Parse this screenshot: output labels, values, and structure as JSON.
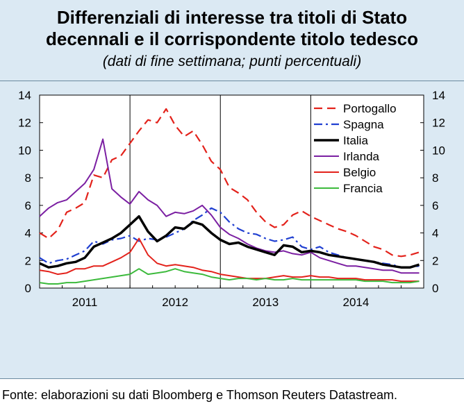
{
  "title_line1": "Differenziali di interesse tra titoli di Stato",
  "title_line2": "decennali e il corrispondente titolo tedesco",
  "subtitle": "(dati di fine settimana; punti percentuali)",
  "source": "Fonte: elaborazioni su dati Bloomberg e Thomson Reuters Datastream.",
  "colors": {
    "panel_bg": "#dbe9f3",
    "Portogallo": "#e3221b",
    "Spagna": "#1f3fd1",
    "Italia": "#000000",
    "Irlanda": "#7b1fa2",
    "Belgio": "#e3221b",
    "Francia": "#3cba3c"
  },
  "chart_data": {
    "type": "line",
    "title": "Differenziali di interesse tra titoli di Stato decennali e il corrispondente titolo tedesco",
    "xlabel": "",
    "ylabel": "",
    "ylim": [
      0,
      14
    ],
    "yticks": [
      0,
      2,
      4,
      6,
      8,
      10,
      12,
      14
    ],
    "xlim": [
      2010.5,
      2014.75
    ],
    "xtick_labels": [
      "2011",
      "2012",
      "2013",
      "2014"
    ],
    "x": [
      2010.5,
      2010.6,
      2010.7,
      2010.8,
      2010.9,
      2011.0,
      2011.1,
      2011.2,
      2011.3,
      2011.4,
      2011.5,
      2011.6,
      2011.7,
      2011.8,
      2011.9,
      2012.0,
      2012.1,
      2012.2,
      2012.3,
      2012.4,
      2012.5,
      2012.6,
      2012.7,
      2012.8,
      2012.9,
      2013.0,
      2013.1,
      2013.2,
      2013.3,
      2013.4,
      2013.5,
      2013.6,
      2013.7,
      2013.8,
      2013.9,
      2014.0,
      2014.1,
      2014.2,
      2014.3,
      2014.4,
      2014.5,
      2014.6,
      2014.7
    ],
    "series": [
      {
        "name": "Portogallo",
        "style": "dashed",
        "values": [
          4.0,
          3.6,
          4.2,
          5.5,
          5.8,
          6.2,
          8.2,
          8.0,
          9.3,
          9.6,
          10.5,
          11.4,
          12.2,
          12.0,
          13.0,
          11.8,
          11.0,
          11.4,
          10.4,
          9.2,
          8.6,
          7.3,
          6.9,
          6.4,
          5.5,
          4.8,
          4.4,
          4.6,
          5.3,
          5.6,
          5.2,
          4.9,
          4.6,
          4.3,
          4.1,
          3.8,
          3.4,
          3.0,
          2.8,
          2.4,
          2.3,
          2.4,
          2.6
        ]
      },
      {
        "name": "Spagna",
        "style": "dashdot",
        "values": [
          2.2,
          1.8,
          2.0,
          2.1,
          2.4,
          2.7,
          3.4,
          3.2,
          3.5,
          3.6,
          3.8,
          3.4,
          3.6,
          3.5,
          3.7,
          4.0,
          4.3,
          4.9,
          5.3,
          5.8,
          5.5,
          4.8,
          4.3,
          4.0,
          3.9,
          3.6,
          3.4,
          3.5,
          3.7,
          3.0,
          2.8,
          3.0,
          2.6,
          2.4,
          2.2,
          2.1,
          2.0,
          1.9,
          1.8,
          1.7,
          1.5,
          1.5,
          1.6
        ]
      },
      {
        "name": "Italia",
        "style": "solid-bold",
        "values": [
          1.8,
          1.5,
          1.6,
          1.8,
          1.9,
          2.2,
          3.0,
          3.3,
          3.6,
          4.0,
          4.6,
          5.2,
          4.1,
          3.4,
          3.8,
          4.4,
          4.3,
          4.8,
          4.6,
          4.0,
          3.5,
          3.2,
          3.3,
          3.0,
          2.8,
          2.6,
          2.4,
          3.1,
          3.0,
          2.6,
          2.7,
          2.6,
          2.4,
          2.3,
          2.2,
          2.1,
          2.0,
          1.9,
          1.7,
          1.6,
          1.5,
          1.5,
          1.7
        ]
      },
      {
        "name": "Irlanda",
        "style": "solid",
        "values": [
          5.2,
          5.8,
          6.2,
          6.4,
          7.0,
          7.6,
          8.6,
          10.8,
          7.2,
          6.6,
          6.1,
          7.0,
          6.4,
          6.0,
          5.2,
          5.5,
          5.4,
          5.6,
          6.0,
          5.3,
          4.4,
          3.9,
          3.6,
          3.2,
          2.9,
          2.7,
          2.6,
          2.7,
          2.5,
          2.4,
          2.6,
          2.2,
          2.0,
          1.8,
          1.6,
          1.6,
          1.5,
          1.4,
          1.3,
          1.3,
          1.1,
          1.1,
          1.1
        ]
      },
      {
        "name": "Belgio",
        "style": "solid",
        "values": [
          1.3,
          1.2,
          1.0,
          1.1,
          1.4,
          1.4,
          1.6,
          1.6,
          1.9,
          2.2,
          2.6,
          3.6,
          2.4,
          1.8,
          1.6,
          1.7,
          1.6,
          1.5,
          1.3,
          1.2,
          1.0,
          0.9,
          0.8,
          0.7,
          0.7,
          0.7,
          0.8,
          0.9,
          0.8,
          0.8,
          0.9,
          0.8,
          0.8,
          0.7,
          0.7,
          0.7,
          0.6,
          0.6,
          0.6,
          0.6,
          0.5,
          0.5,
          0.5
        ]
      },
      {
        "name": "Francia",
        "style": "solid",
        "values": [
          0.4,
          0.3,
          0.3,
          0.4,
          0.4,
          0.5,
          0.6,
          0.7,
          0.8,
          0.9,
          1.0,
          1.4,
          1.0,
          1.1,
          1.2,
          1.4,
          1.2,
          1.1,
          1.0,
          0.8,
          0.7,
          0.6,
          0.7,
          0.7,
          0.6,
          0.7,
          0.6,
          0.6,
          0.7,
          0.6,
          0.6,
          0.6,
          0.6,
          0.6,
          0.6,
          0.6,
          0.5,
          0.5,
          0.5,
          0.4,
          0.4,
          0.4,
          0.5
        ]
      }
    ],
    "legend_position": "top-right",
    "grid": false
  }
}
